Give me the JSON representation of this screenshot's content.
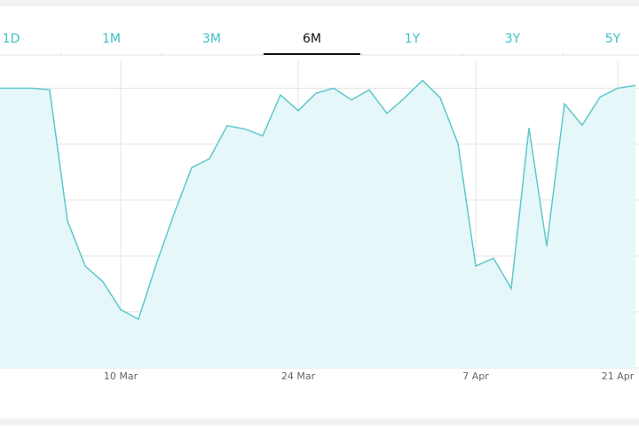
{
  "tabs": [
    {
      "label": "1D",
      "selected": false
    },
    {
      "label": "1M",
      "selected": false
    },
    {
      "label": "3M",
      "selected": false
    },
    {
      "label": "6M",
      "selected": true
    },
    {
      "label": "1Y",
      "selected": false
    },
    {
      "label": "3Y",
      "selected": false
    },
    {
      "label": "5Y",
      "selected": false
    }
  ],
  "chart_data": {
    "type": "area",
    "color": "#5ec8cc",
    "fill": "#e5f7f8",
    "grid": true,
    "categories": [
      null,
      null,
      null,
      null,
      null,
      null,
      null,
      "10 Mar",
      null,
      null,
      null,
      null,
      null,
      null,
      null,
      null,
      null,
      "24 Mar",
      null,
      null,
      null,
      null,
      null,
      null,
      null,
      null,
      null,
      "7 Apr",
      null,
      null,
      null,
      null,
      null,
      null,
      null,
      "21 Apr",
      null
    ],
    "values": [
      5.0,
      5.0,
      5.0,
      4.97,
      2.63,
      1.82,
      1.54,
      1.04,
      0.87,
      1.85,
      2.75,
      3.58,
      3.74,
      4.33,
      4.27,
      4.15,
      4.88,
      4.6,
      4.91,
      5.0,
      4.79,
      4.97,
      4.55,
      4.83,
      5.14,
      4.83,
      4.01,
      1.82,
      1.96,
      1.42,
      4.29,
      2.18,
      4.72,
      4.34,
      4.84,
      5.0,
      5.05
    ],
    "ylim": [
      0,
      5.5
    ],
    "yticks": [
      1,
      2,
      3,
      4,
      5
    ]
  }
}
